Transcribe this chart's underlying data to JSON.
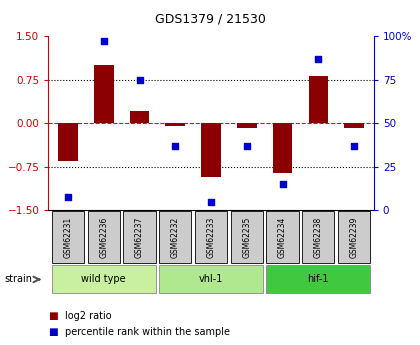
{
  "title": "GDS1379 / 21530",
  "samples": [
    "GSM62231",
    "GSM62236",
    "GSM62237",
    "GSM62232",
    "GSM62233",
    "GSM62235",
    "GSM62234",
    "GSM62238",
    "GSM62239"
  ],
  "log2_ratio": [
    -0.65,
    1.0,
    0.22,
    -0.05,
    -0.92,
    -0.08,
    -0.85,
    0.82,
    -0.08
  ],
  "percentile_rank": [
    8,
    97,
    75,
    37,
    5,
    37,
    15,
    87,
    37
  ],
  "groups": [
    {
      "label": "wild type",
      "indices": [
        0,
        1,
        2
      ],
      "color": "#c8f0a0"
    },
    {
      "label": "vhl-1",
      "indices": [
        3,
        4,
        5
      ],
      "color": "#b0e890"
    },
    {
      "label": "hif-1",
      "indices": [
        6,
        7,
        8
      ],
      "color": "#40c840"
    }
  ],
  "bar_color": "#8b0000",
  "dot_color": "#0000cc",
  "left_axis_color": "#cc0000",
  "right_axis_color": "#0000cc",
  "ylim_left": [
    -1.5,
    1.5
  ],
  "ylim_right": [
    0,
    100
  ],
  "hlines": [
    0.75,
    0.0,
    -0.75
  ],
  "hline_styles": [
    "dotted",
    "dashed",
    "dotted"
  ],
  "hline_colors": [
    "black",
    "red",
    "black"
  ],
  "bg_color": "#ffffff",
  "sample_box_color": "#cccccc",
  "strain_label": "strain"
}
